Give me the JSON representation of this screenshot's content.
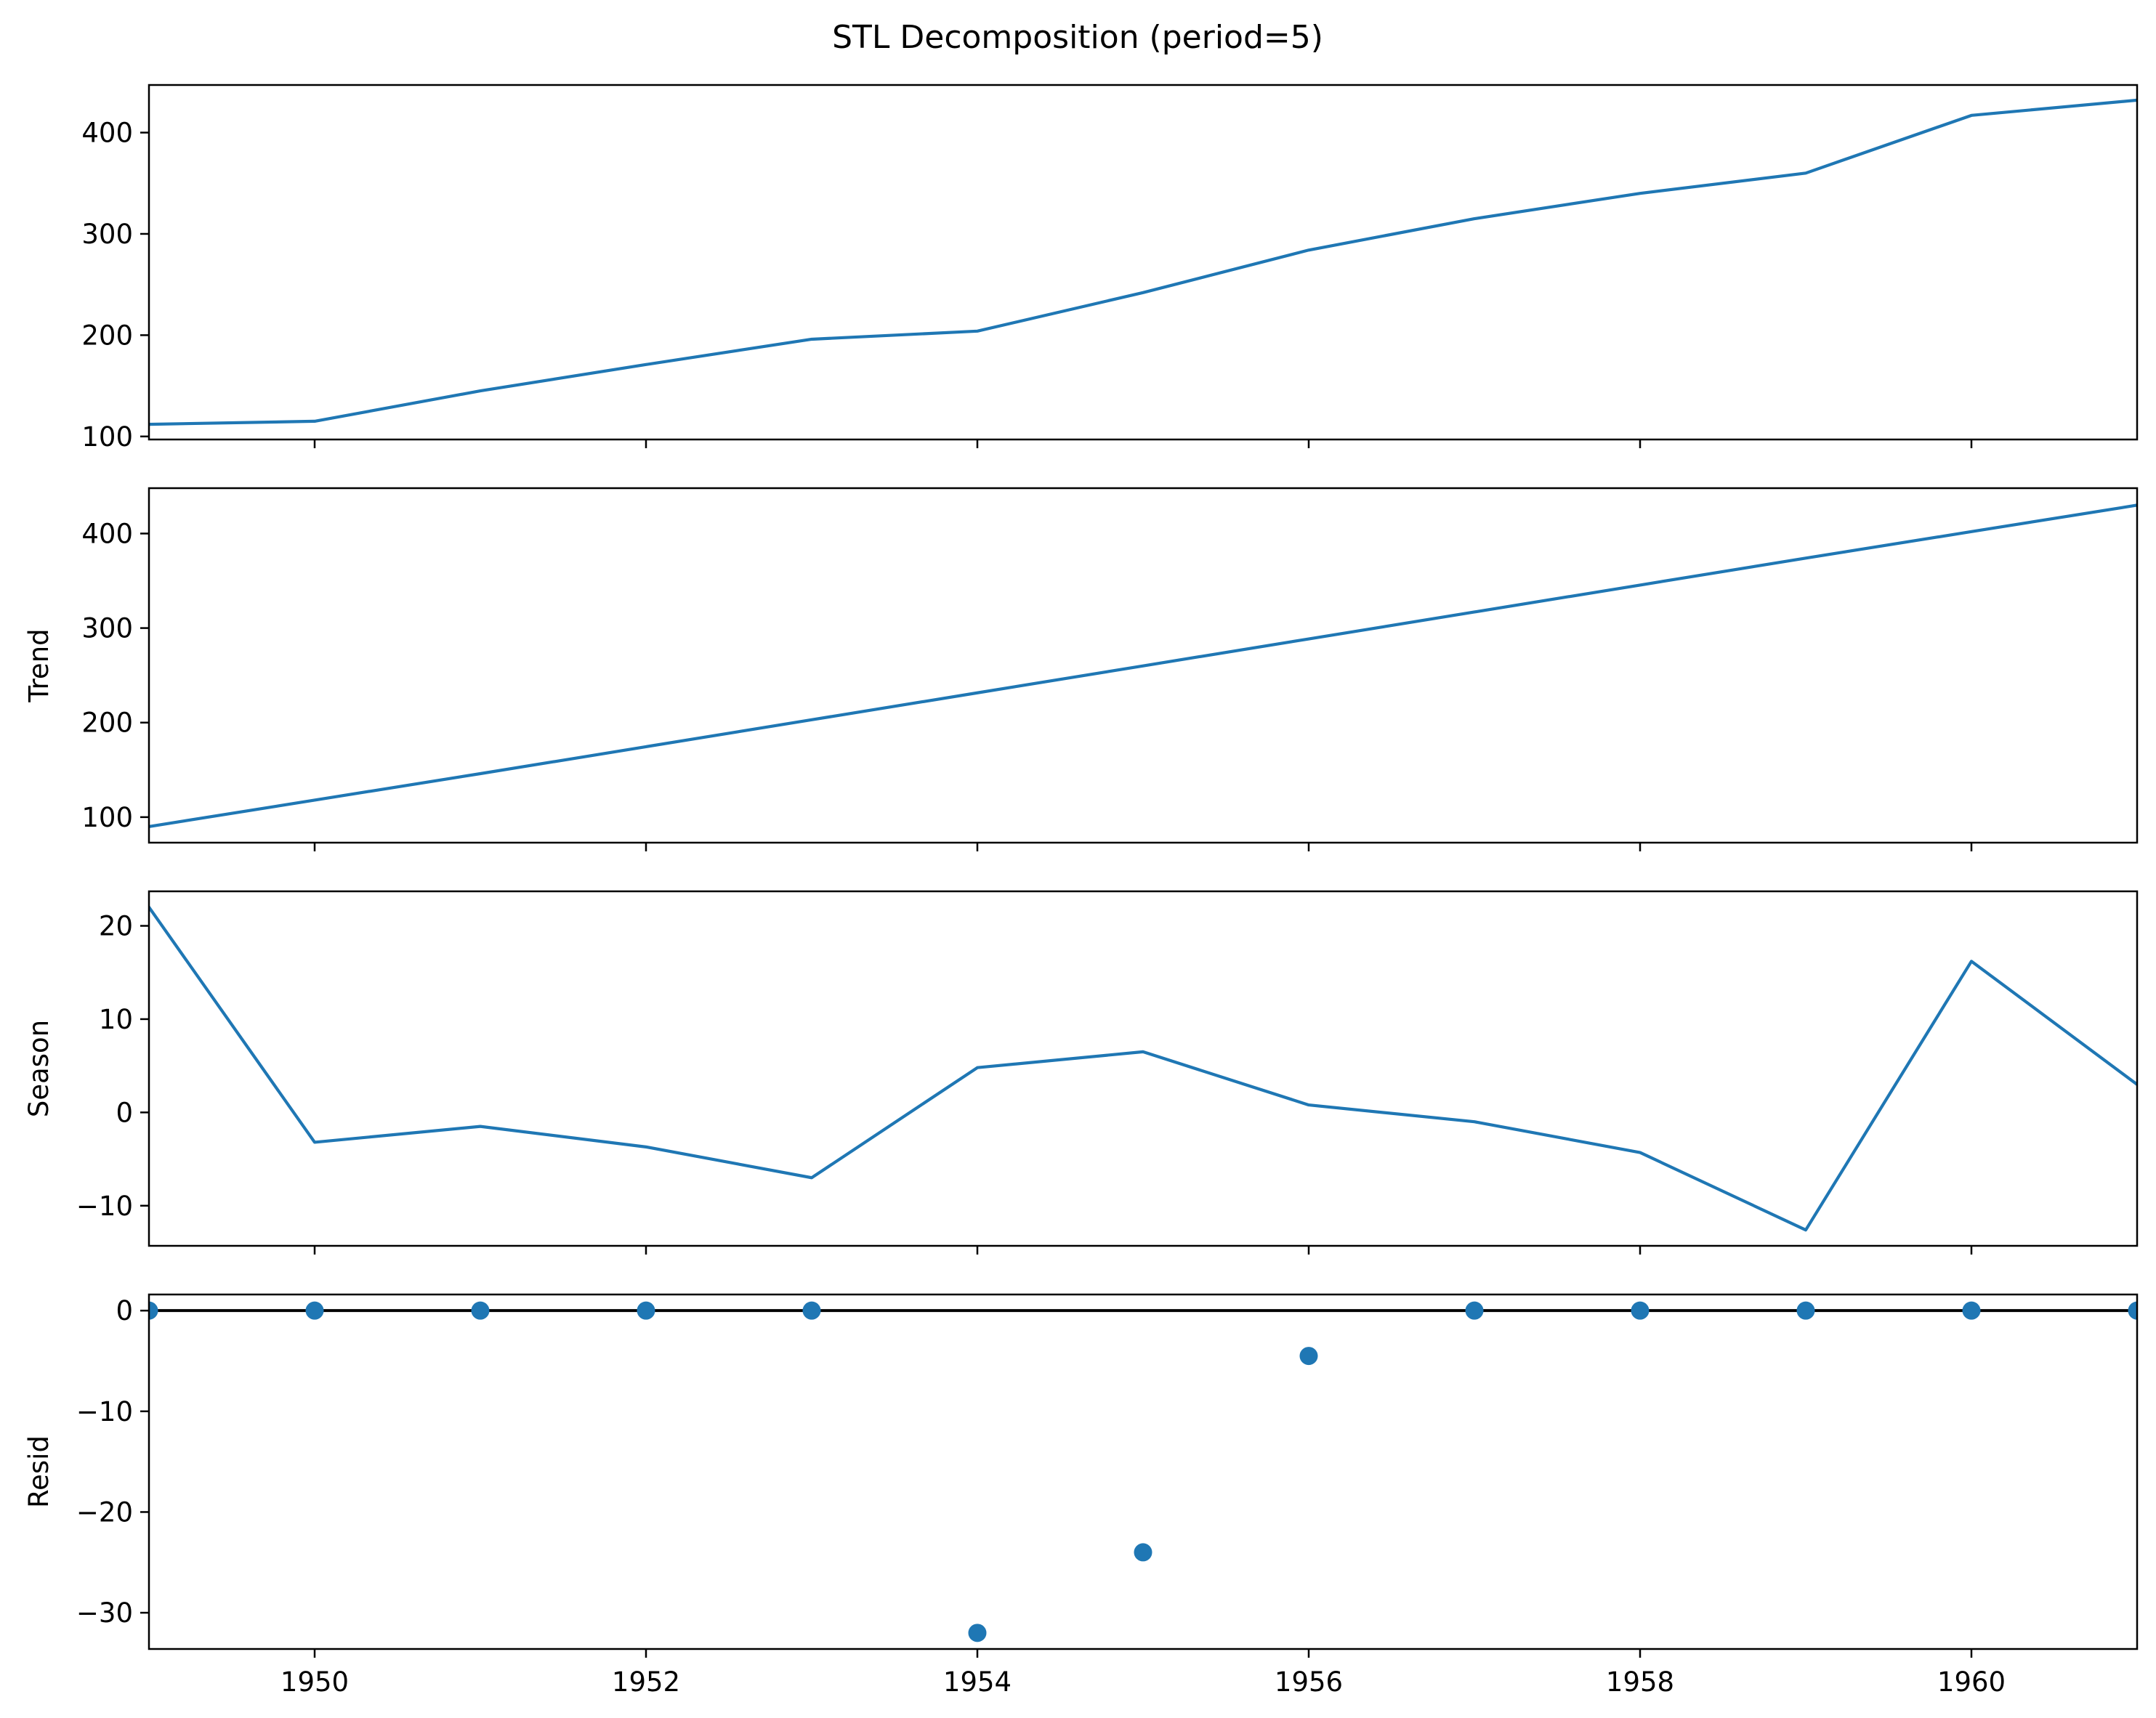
{
  "title": "STL Decomposition (period=5)",
  "colors": {
    "series": "#1f77b4",
    "zero_line": "#000000",
    "axes": "#000000"
  },
  "chart_data": [
    {
      "type": "line",
      "panel": "observed",
      "ylabel": "",
      "x": [
        1949,
        1950,
        1951,
        1952,
        1953,
        1954,
        1955,
        1956,
        1957,
        1958,
        1959,
        1960,
        1961
      ],
      "values": [
        112,
        115,
        145,
        171,
        196,
        204,
        242,
        284,
        315,
        340,
        360,
        417,
        432
      ],
      "xlim": [
        1949,
        1961
      ],
      "ylim": [
        97,
        447
      ],
      "yticks": [
        100,
        200,
        300,
        400
      ],
      "xticks": [
        1950,
        1952,
        1954,
        1956,
        1958,
        1960
      ],
      "show_xtick_labels": false,
      "grid": false
    },
    {
      "type": "line",
      "panel": "trend",
      "ylabel": "Trend",
      "x": [
        1949,
        1950,
        1951,
        1952,
        1953,
        1954,
        1955,
        1956,
        1957,
        1958,
        1959,
        1960,
        1961
      ],
      "values": [
        90,
        118,
        146,
        174.5,
        203,
        231.5,
        260,
        288.5,
        317,
        345.5,
        374,
        402,
        430
      ],
      "xlim": [
        1949,
        1961
      ],
      "ylim": [
        73,
        448
      ],
      "yticks": [
        100,
        200,
        300,
        400
      ],
      "xticks": [
        1950,
        1952,
        1954,
        1956,
        1958,
        1960
      ],
      "show_xtick_labels": false,
      "grid": false
    },
    {
      "type": "line",
      "panel": "season",
      "ylabel": "Season",
      "x": [
        1949,
        1950,
        1951,
        1952,
        1953,
        1954,
        1955,
        1956,
        1957,
        1958,
        1959,
        1960,
        1961
      ],
      "values": [
        22,
        -3.2,
        -1.5,
        -3.7,
        -7,
        4.8,
        6.5,
        0.8,
        -1,
        -4.3,
        -12.6,
        16.2,
        3
      ],
      "xlim": [
        1949,
        1961
      ],
      "ylim": [
        -14.3,
        23.7
      ],
      "yticks": [
        -10,
        0,
        10,
        20
      ],
      "xticks": [
        1950,
        1952,
        1954,
        1956,
        1958,
        1960
      ],
      "show_xtick_labels": false,
      "grid": false
    },
    {
      "type": "scatter",
      "panel": "resid",
      "ylabel": "Resid",
      "x": [
        1949,
        1950,
        1951,
        1952,
        1953,
        1954,
        1955,
        1956,
        1957,
        1958,
        1959,
        1960,
        1961
      ],
      "values": [
        0,
        0,
        0,
        0,
        0,
        -32,
        -24,
        -4.5,
        0,
        0,
        0,
        0,
        0
      ],
      "zero_line": true,
      "xlim": [
        1949,
        1961
      ],
      "ylim": [
        -33.6,
        1.6
      ],
      "yticks": [
        -30,
        -20,
        -10,
        0
      ],
      "xticks": [
        1950,
        1952,
        1954,
        1956,
        1958,
        1960
      ],
      "show_xtick_labels": true,
      "grid": false
    }
  ]
}
